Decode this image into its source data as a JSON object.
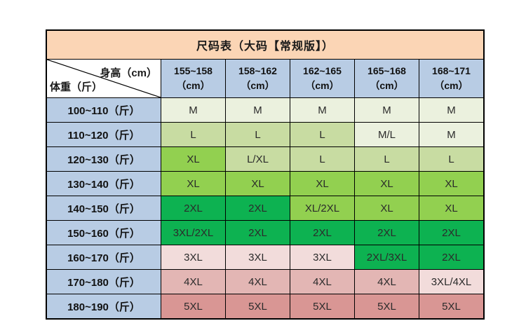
{
  "title": "尺码表（大码【常规版】）",
  "corner": {
    "top_right": "身高（cm）",
    "bottom_left": "体重（斤）"
  },
  "columns": [
    {
      "line1": "155~158",
      "line2": "（cm）"
    },
    {
      "line1": "158~162",
      "line2": "（cm）"
    },
    {
      "line1": "162~165",
      "line2": "（cm）"
    },
    {
      "line1": "165~168",
      "line2": "（cm）"
    },
    {
      "line1": "168~171",
      "line2": "（cm）"
    }
  ],
  "rows": [
    {
      "label": "100~110（斤）",
      "cells": [
        {
          "text": "M",
          "bg": "paleGreen"
        },
        {
          "text": "M",
          "bg": "paleGreen"
        },
        {
          "text": "M",
          "bg": "paleGreen"
        },
        {
          "text": "M",
          "bg": "paleGreen"
        },
        {
          "text": "M",
          "bg": "paleGreen"
        }
      ]
    },
    {
      "label": "110~120（斤）",
      "cells": [
        {
          "text": "L",
          "bg": "lightGreen"
        },
        {
          "text": "L",
          "bg": "lightGreen"
        },
        {
          "text": "L",
          "bg": "lightGreen"
        },
        {
          "text": "M/L",
          "bg": "paleGreen"
        },
        {
          "text": "M",
          "bg": "paleGreen"
        }
      ]
    },
    {
      "label": "120~130（斤）",
      "cells": [
        {
          "text": "XL",
          "bg": "brightGreen"
        },
        {
          "text": "L/XL",
          "bg": "lightGreen"
        },
        {
          "text": "L",
          "bg": "lightGreen"
        },
        {
          "text": "L",
          "bg": "lightGreen"
        },
        {
          "text": "L",
          "bg": "lightGreen"
        }
      ]
    },
    {
      "label": "130~140（斤）",
      "cells": [
        {
          "text": "XL",
          "bg": "brightGreen"
        },
        {
          "text": "XL",
          "bg": "brightGreen"
        },
        {
          "text": "XL",
          "bg": "brightGreen"
        },
        {
          "text": "XL",
          "bg": "brightGreen"
        },
        {
          "text": "XL",
          "bg": "brightGreen"
        }
      ]
    },
    {
      "label": "140~150（斤）",
      "cells": [
        {
          "text": "2XL",
          "bg": "darkGreen"
        },
        {
          "text": "2XL",
          "bg": "darkGreen"
        },
        {
          "text": "XL/2XL",
          "bg": "brightGreen"
        },
        {
          "text": "XL",
          "bg": "brightGreen"
        },
        {
          "text": "XL",
          "bg": "brightGreen"
        }
      ]
    },
    {
      "label": "150~160（斤）",
      "cells": [
        {
          "text": "3XL/2XL",
          "bg": "darkGreen"
        },
        {
          "text": "2XL",
          "bg": "darkGreen"
        },
        {
          "text": "2XL",
          "bg": "darkGreen"
        },
        {
          "text": "2XL",
          "bg": "darkGreen"
        },
        {
          "text": "2XL",
          "bg": "darkGreen"
        }
      ]
    },
    {
      "label": "160~170（斤）",
      "cells": [
        {
          "text": "3XL",
          "bg": "palePink"
        },
        {
          "text": "3XL",
          "bg": "palePink"
        },
        {
          "text": "3XL",
          "bg": "palePink"
        },
        {
          "text": "2XL/3XL",
          "bg": "darkGreen"
        },
        {
          "text": "2XL",
          "bg": "darkGreen"
        }
      ]
    },
    {
      "label": "170~180（斤）",
      "cells": [
        {
          "text": "4XL",
          "bg": "lightPink"
        },
        {
          "text": "4XL",
          "bg": "lightPink"
        },
        {
          "text": "4XL",
          "bg": "lightPink"
        },
        {
          "text": "4XL",
          "bg": "lightPink"
        },
        {
          "text": "3XL/4XL",
          "bg": "palePink"
        }
      ]
    },
    {
      "label": "180~190（斤）",
      "cells": [
        {
          "text": "5XL",
          "bg": "mediumPink"
        },
        {
          "text": "5XL",
          "bg": "mediumPink"
        },
        {
          "text": "5XL",
          "bg": "mediumPink"
        },
        {
          "text": "5XL",
          "bg": "mediumPink"
        },
        {
          "text": "5XL",
          "bg": "mediumPink"
        }
      ]
    }
  ],
  "colors": {
    "title_bg": "#FBD5B5",
    "header_bg": "#B8CCE4",
    "paleGreen": "#EBF1DE",
    "lightGreen": "#C8DCA2",
    "brightGreen": "#92D050",
    "darkGreen": "#0DB251",
    "palePink": "#F2DCDB",
    "lightPink": "#E3B6B4",
    "mediumPink": "#D99694",
    "border": "#000000"
  }
}
